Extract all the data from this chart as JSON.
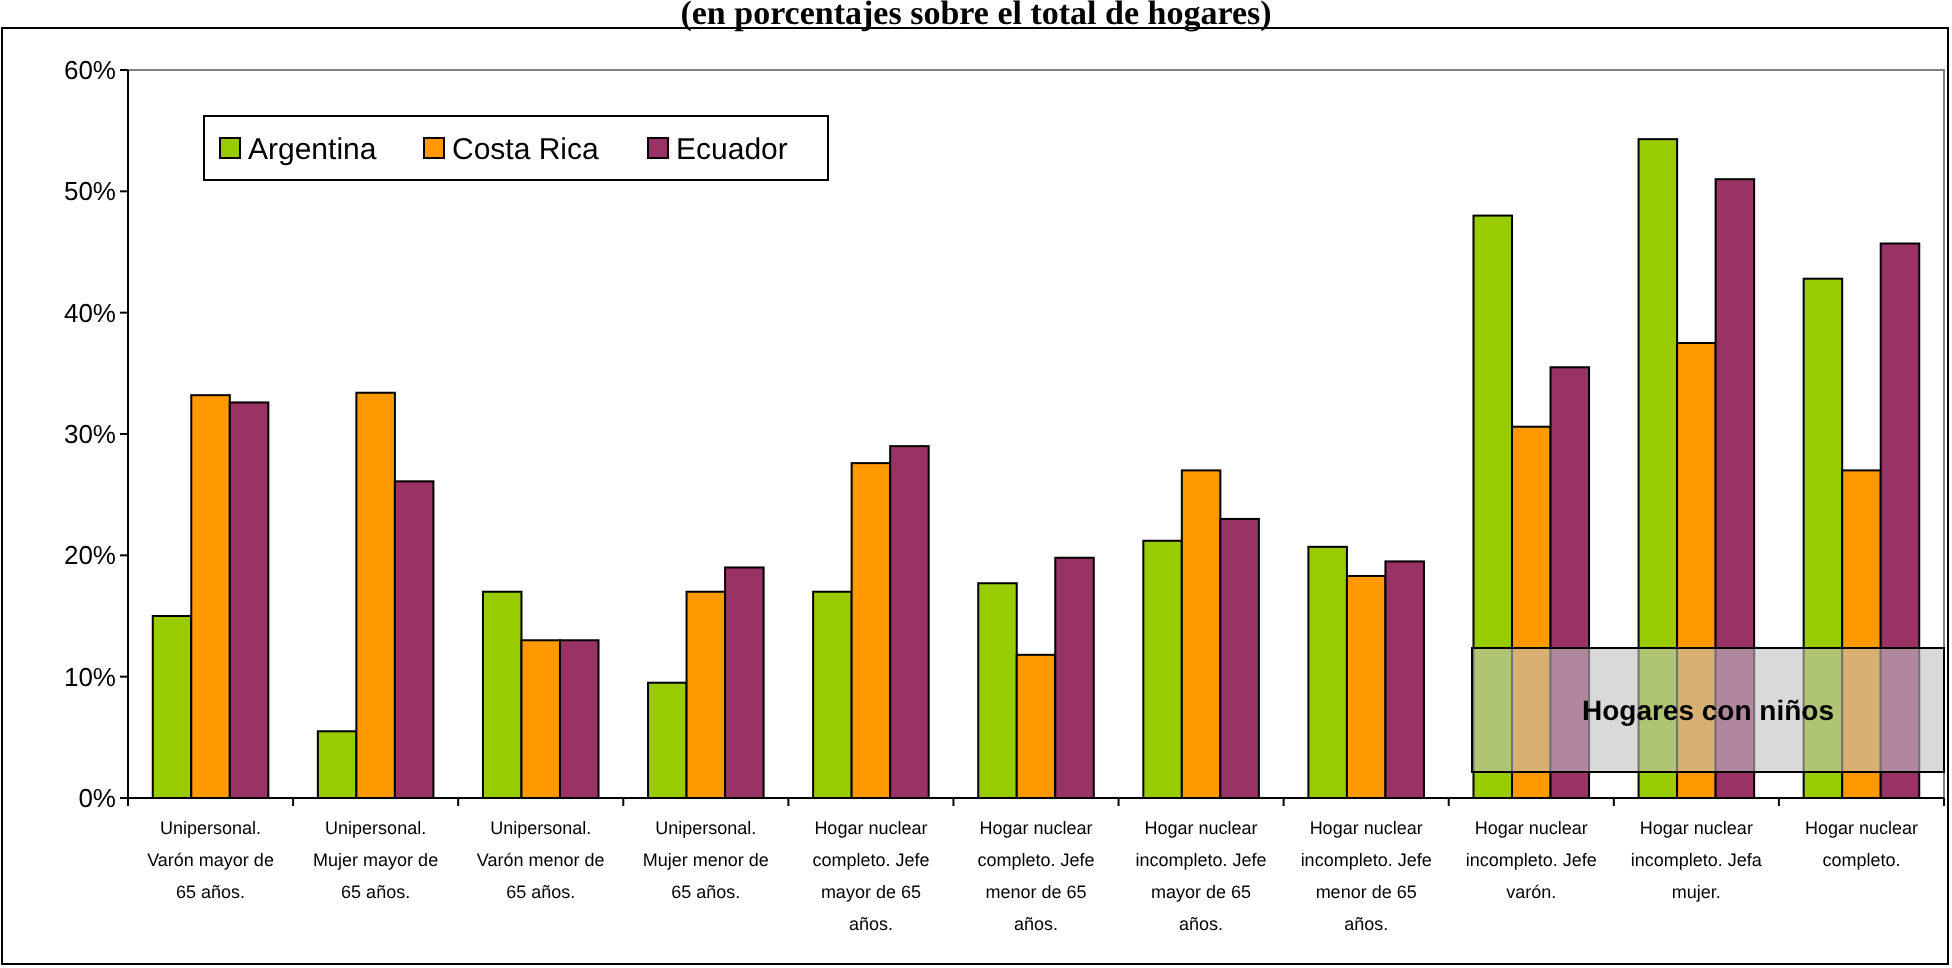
{
  "chart_data": {
    "type": "bar",
    "title": "(en porcentajes sobre el total de hogares)",
    "categories": [
      "Unipersonal. Varón mayor de 65 años.",
      "Unipersonal. Mujer mayor de 65 años.",
      "Unipersonal. Varón menor de 65 años.",
      "Unipersonal. Mujer menor de 65 años.",
      "Hogar nuclear completo. Jefe mayor de 65 años.",
      "Hogar nuclear completo. Jefe menor de 65 años.",
      "Hogar nuclear incompleto. Jefe mayor de 65 años.",
      "Hogar nuclear incompleto. Jefe menor de 65 años.",
      "Hogar nuclear incompleto. Jefe varón.",
      "Hogar nuclear incompleto. Jefa mujer.",
      "Hogar nuclear completo."
    ],
    "series": [
      {
        "name": "Argentina",
        "color": "#99cc00",
        "values": [
          15,
          5.5,
          17,
          9.5,
          17,
          17.7,
          21.2,
          20.7,
          48,
          54.3,
          42.8
        ]
      },
      {
        "name": "Costa Rica",
        "color": "#ff9900",
        "values": [
          33.2,
          33.4,
          13,
          17,
          27.6,
          11.8,
          27,
          18.3,
          30.6,
          37.5,
          27
        ]
      },
      {
        "name": "Ecuador",
        "color": "#993366",
        "values": [
          32.6,
          26.1,
          13,
          19,
          29,
          19.8,
          23,
          19.5,
          35.5,
          51,
          45.7
        ]
      }
    ],
    "ylim": [
      0,
      60
    ],
    "yticks": [
      {
        "value": 0,
        "label": "0%"
      },
      {
        "value": 10,
        "label": "10%"
      },
      {
        "value": 20,
        "label": "20%"
      },
      {
        "value": 30,
        "label": "30%"
      },
      {
        "value": 40,
        "label": "40%"
      },
      {
        "value": 50,
        "label": "50%"
      },
      {
        "value": 60,
        "label": "60%"
      }
    ],
    "grid": false,
    "legend": "top left",
    "annotations": [
      "Hogares con niños"
    ]
  }
}
